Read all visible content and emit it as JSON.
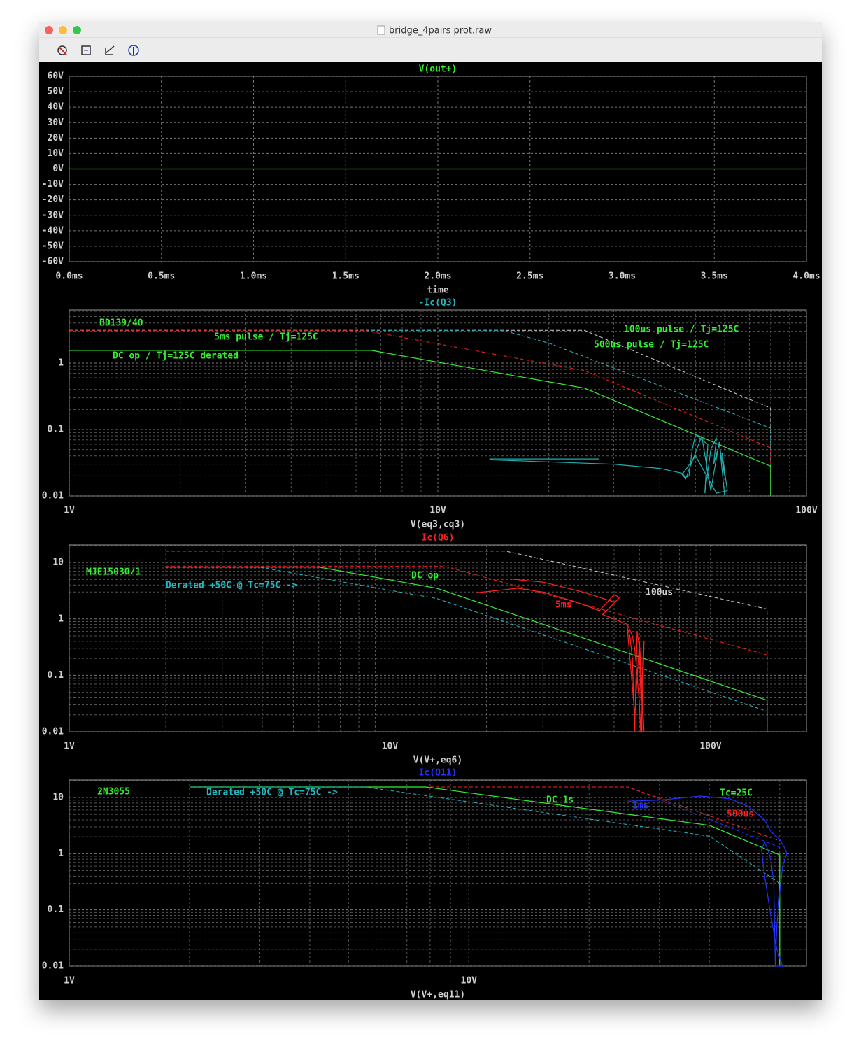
{
  "window": {
    "title": "bridge_4pairs prot.raw"
  },
  "chart_data": [
    {
      "type": "line",
      "title": "V(out+)",
      "title_color": "#33ee33",
      "x_label": "time",
      "grid": true,
      "xlim": [
        0,
        4
      ],
      "xticks": [
        {
          "value": 0,
          "label": "0.0ms"
        },
        {
          "value": 0.5,
          "label": "0.5ms"
        },
        {
          "value": 1,
          "label": "1.0ms"
        },
        {
          "value": 1.5,
          "label": "1.5ms"
        },
        {
          "value": 2,
          "label": "2.0ms"
        },
        {
          "value": 2.5,
          "label": "2.5ms"
        },
        {
          "value": 3,
          "label": "3.0ms"
        },
        {
          "value": 3.5,
          "label": "3.5ms"
        },
        {
          "value": 4,
          "label": "4.0ms"
        }
      ],
      "ylim": [
        -60,
        60
      ],
      "yticks": [
        {
          "value": 60,
          "label": "60V"
        },
        {
          "value": 50,
          "label": "50V"
        },
        {
          "value": 40,
          "label": "40V"
        },
        {
          "value": 30,
          "label": "30V"
        },
        {
          "value": 20,
          "label": "20V"
        },
        {
          "value": 10,
          "label": "10V"
        },
        {
          "value": 0,
          "label": "0V"
        },
        {
          "value": -10,
          "label": "-10V"
        },
        {
          "value": -20,
          "label": "-20V"
        },
        {
          "value": -30,
          "label": "-30V"
        },
        {
          "value": -40,
          "label": "-40V"
        },
        {
          "value": -50,
          "label": "-50V"
        },
        {
          "value": -60,
          "label": "-60V"
        }
      ],
      "series": [
        {
          "color": "#33ee33",
          "style": "solid",
          "x": [
            0,
            4
          ],
          "values": [
            0,
            0
          ]
        }
      ],
      "annotations": []
    },
    {
      "type": "line",
      "title": "-Ic(Q3)",
      "title_color": "#22b8c0",
      "x_label": "V(eq3,cq3)",
      "grid": true,
      "xscale": "log",
      "yscale": "log",
      "xlim": [
        1,
        100
      ],
      "xticks": [
        {
          "value": 1,
          "label": "1V"
        },
        {
          "value": 10,
          "label": "10V"
        },
        {
          "value": 100,
          "label": "100V"
        }
      ],
      "ylim": [
        0.01,
        6.3
      ],
      "yticks": [
        0.01,
        0.1,
        1
      ],
      "series": [
        {
          "color": "#d0d0d0",
          "style": "dashed",
          "x": [
            1,
            25,
            80,
            80
          ],
          "values": [
            3.1,
            3.1,
            0.21,
            0.01
          ]
        },
        {
          "color": "#22b8c0",
          "style": "dashed",
          "x": [
            1,
            15,
            20,
            80,
            80
          ],
          "values": [
            3.1,
            3.1,
            2.0,
            0.105,
            0.01
          ]
        },
        {
          "color": "#ff2020",
          "style": "dashed",
          "x": [
            1,
            6.3,
            25,
            80,
            80
          ],
          "values": [
            3.1,
            3.1,
            0.77,
            0.053,
            0.01
          ]
        },
        {
          "color": "#33ee33",
          "style": "solid",
          "x": [
            1,
            6.6,
            25,
            80,
            80
          ],
          "values": [
            1.55,
            1.55,
            0.42,
            0.028,
            0.01
          ]
        },
        {
          "color": "#1fb0b0",
          "style": "solid",
          "x": [
            13.8,
            27.4,
            null,
            13.8,
            30,
            40,
            46,
            47,
            48,
            49,
            50,
            52,
            54,
            53,
            55,
            57,
            56,
            58,
            60,
            59,
            61,
            57,
            50,
            46,
            47,
            52,
            55,
            58,
            60
          ],
          "values": [
            0.036,
            0.036,
            null,
            0.035,
            0.03,
            0.026,
            0.022,
            0.019,
            0.02,
            0.05,
            0.085,
            0.07,
            0.06,
            0.011,
            0.05,
            0.075,
            0.03,
            0.06,
            0.02,
            0.045,
            0.012,
            0.011,
            0.04,
            0.021,
            0.018,
            0.08,
            0.012,
            0.065,
            0.01
          ]
        }
      ],
      "annotations": [
        {
          "text": "BD139/40",
          "color": "#33ee33"
        },
        {
          "text": "5ms pulse / Tj=125C",
          "color": "#33ee33"
        },
        {
          "text": "DC op / Tj=125C derated",
          "color": "#33ee33"
        },
        {
          "text": "100us pulse / Tj=125C",
          "color": "#33ee33"
        },
        {
          "text": "500us pulse / Tj=125C",
          "color": "#33ee33"
        }
      ]
    },
    {
      "type": "line",
      "title": "Ic(Q6)",
      "title_color": "#ff2020",
      "x_label": "V(V+,eq6)",
      "grid": true,
      "xscale": "log",
      "yscale": "log",
      "xlim": [
        1,
        199
      ],
      "xticks": [
        {
          "value": 1,
          "label": "1V"
        },
        {
          "value": 10,
          "label": "10V"
        },
        {
          "value": 100,
          "label": "100V"
        }
      ],
      "ylim": [
        0.01,
        20.5
      ],
      "yticks": [
        0.01,
        0.1,
        1,
        10
      ],
      "series": [
        {
          "color": "#d0d0d0",
          "style": "dashed",
          "x": [
            2,
            22.9,
            150,
            150
          ],
          "values": [
            16,
            16,
            1.5,
            0.01
          ]
        },
        {
          "color": "#ff2020",
          "style": "dashed",
          "x": [
            2,
            14.9,
            150,
            150
          ],
          "values": [
            8.5,
            8.5,
            0.23,
            0.01
          ]
        },
        {
          "color": "#33ee33",
          "style": "solid",
          "x": [
            2,
            6,
            14,
            150,
            150
          ],
          "values": [
            8.3,
            8.3,
            3.5,
            0.036,
            0.01
          ]
        },
        {
          "color": "#22b8c0",
          "style": "dashed",
          "x": [
            2,
            3.9,
            14,
            150
          ],
          "values": [
            8.3,
            8.3,
            2.3,
            0.023
          ]
        },
        {
          "color": "#ff2020",
          "style": "solid",
          "x": [
            18.5,
            25,
            30,
            38,
            45,
            50,
            52,
            48,
            46,
            50,
            55,
            57,
            58,
            59,
            60,
            60.5,
            61,
            61.5,
            62,
            61,
            60,
            59,
            58,
            57,
            56,
            55,
            58,
            60,
            62,
            63,
            null,
            23.8,
            30,
            40,
            50
          ],
          "values": [
            2.9,
            3.5,
            3.0,
            2.0,
            1.4,
            2.7,
            2.4,
            1.5,
            1.2,
            1.0,
            0.8,
            0.5,
            0.3,
            0.1,
            0.03,
            0.01,
            0.05,
            0.2,
            0.4,
            0.01,
            0.3,
            0.6,
            0.01,
            0.2,
            0.5,
            0.7,
            0.02,
            0.4,
            0.01,
            0.01,
            null,
            5.1,
            4.5,
            3,
            2
          ]
        }
      ],
      "annotations": [
        {
          "text": "MJE15030/1",
          "color": "#33ee33"
        },
        {
          "text": "Derated +50C @ Tc=75C ->",
          "color": "#22b8c0"
        },
        {
          "text": "DC op",
          "color": "#33ee33"
        },
        {
          "text": "5ms",
          "color": "#ff2020"
        },
        {
          "text": "100us",
          "color": "#d0d0d0"
        }
      ]
    },
    {
      "type": "line",
      "title": "Ic(Q11)",
      "title_color": "#2233ff",
      "x_label": "V(V+,eq11)",
      "grid": true,
      "xscale": "log",
      "yscale": "log",
      "xlim": [
        1,
        70
      ],
      "xticks": [
        {
          "value": 1,
          "label": "1V"
        },
        {
          "value": 10,
          "label": "10V"
        }
      ],
      "ylim": [
        0.01,
        20.5
      ],
      "yticks": [
        0.01,
        0.1,
        1,
        10
      ],
      "series": [
        {
          "color": "#2233ff",
          "style": "dashed",
          "x": [
            2,
            25,
            60
          ],
          "values": [
            15.4,
            15.4,
            1.3
          ]
        },
        {
          "color": "#ff2020",
          "style": "dashed",
          "x": [
            2,
            25,
            60
          ],
          "values": [
            15.4,
            15.4,
            1.7
          ]
        },
        {
          "color": "#33ee33",
          "style": "solid",
          "x": [
            2,
            7.8,
            40,
            60,
            60
          ],
          "values": [
            15.4,
            15.4,
            3.2,
            0.95,
            0.01
          ]
        },
        {
          "color": "#22b8c0",
          "style": "dashed",
          "x": [
            2,
            5.5,
            40,
            60
          ],
          "values": [
            15.4,
            15.4,
            2.05,
            0.3
          ]
        },
        {
          "color": "#2233ff",
          "style": "solid",
          "x": [
            25,
            30,
            38,
            45,
            50,
            55,
            57,
            60,
            62,
            62.5,
            61,
            60,
            59,
            58.5,
            58,
            57,
            56,
            55,
            54,
            55,
            57,
            59,
            61,
            58.8
          ],
          "values": [
            8.6,
            9,
            10.6,
            9.5,
            7,
            4,
            2.5,
            1.8,
            1.2,
            1.0,
            0.6,
            0.2,
            0.05,
            0.01,
            0.3,
            0.8,
            1.2,
            1.6,
            1.2,
            0.4,
            0.08,
            0.02,
            0.01,
            0.01
          ]
        }
      ],
      "annotations": [
        {
          "text": "2N3055",
          "color": "#33ee33"
        },
        {
          "text": "Derated +50C @ Tc=75C ->",
          "color": "#22b8c0"
        },
        {
          "text": "DC 1s",
          "color": "#33ee33"
        },
        {
          "text": "1ms",
          "color": "#2233ff"
        },
        {
          "text": "500us",
          "color": "#ff2020"
        },
        {
          "text": "Tc=25C",
          "color": "#33ee33"
        }
      ]
    }
  ]
}
